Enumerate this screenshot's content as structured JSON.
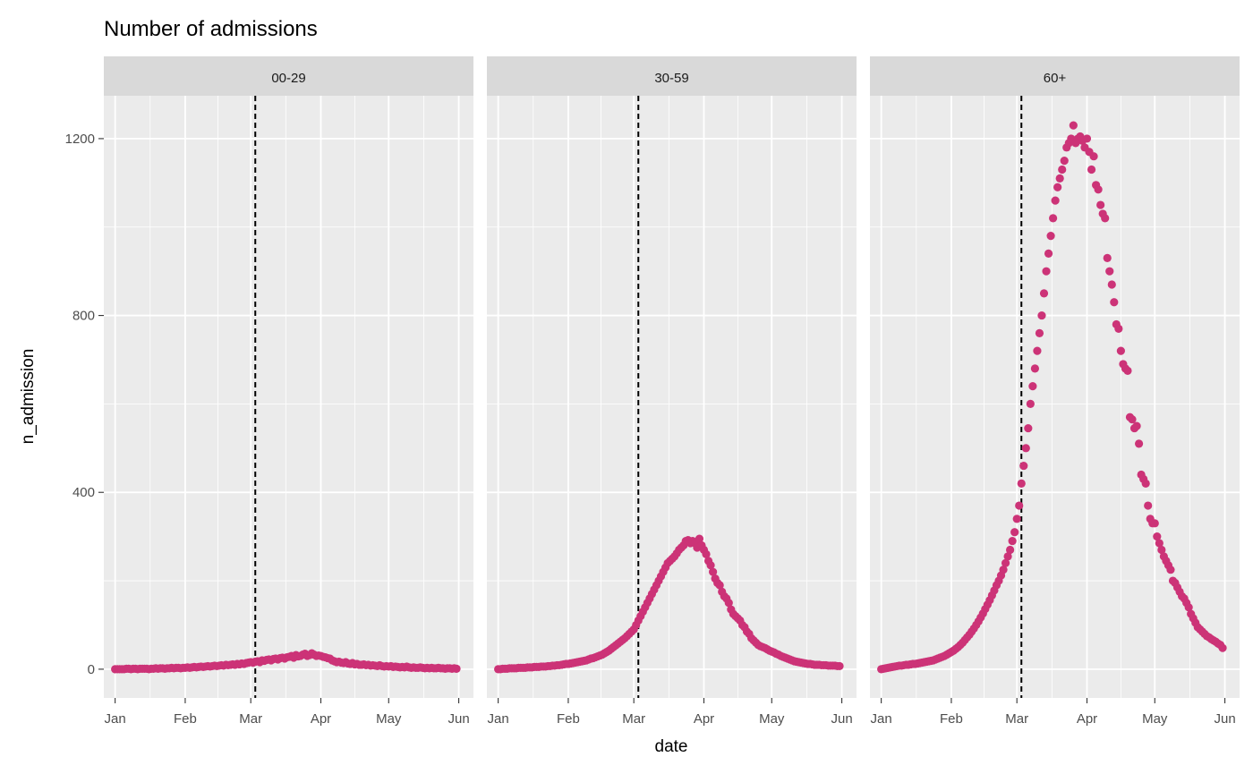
{
  "chart_data": {
    "type": "scatter",
    "title": "Number of admissions",
    "xlabel": "date",
    "ylabel": "n_admission",
    "facets": [
      "00-29",
      "30-59",
      "60+"
    ],
    "x_start": "2020-01-01",
    "x_step": "1 day",
    "x_ticks": [
      "Jan",
      "Feb",
      "Mar",
      "Apr",
      "May",
      "Jun"
    ],
    "y_ticks": [
      0,
      400,
      800,
      1200
    ],
    "ylim": [
      -65,
      1297
    ],
    "grid": true,
    "vline": {
      "date": "2020-03-03",
      "style": "dashed",
      "color": "#000000"
    },
    "point_color": "#CC3377",
    "series": [
      {
        "name": "00-29",
        "values": [
          0,
          0,
          0,
          0,
          0,
          1,
          1,
          0,
          1,
          1,
          0,
          1,
          1,
          1,
          1,
          0,
          1,
          1,
          2,
          1,
          2,
          2,
          1,
          2,
          2,
          3,
          2,
          3,
          3,
          2,
          3,
          3,
          4,
          3,
          4,
          5,
          4,
          5,
          6,
          5,
          6,
          7,
          6,
          7,
          8,
          7,
          8,
          9,
          8,
          10,
          9,
          10,
          11,
          10,
          12,
          11,
          13,
          12,
          14,
          15,
          16,
          15,
          17,
          18,
          16,
          20,
          19,
          21,
          22,
          20,
          23,
          24,
          22,
          25,
          26,
          24,
          27,
          28,
          30,
          26,
          32,
          29,
          30,
          33,
          35,
          30,
          32,
          36,
          33,
          30,
          31,
          30,
          28,
          27,
          25,
          24,
          20,
          18,
          16,
          17,
          15,
          14,
          16,
          13,
          12,
          14,
          11,
          12,
          10,
          10,
          11,
          9,
          10,
          8,
          9,
          8,
          7,
          9,
          7,
          6,
          7,
          6,
          7,
          5,
          6,
          5,
          4,
          5,
          4,
          6,
          4,
          3,
          4,
          3,
          3,
          4,
          3,
          2,
          3,
          2,
          3,
          2,
          2,
          3,
          2,
          2,
          1,
          2,
          2,
          1,
          2,
          1
        ]
      },
      {
        "name": "30-59",
        "values": [
          0,
          0,
          1,
          1,
          1,
          2,
          2,
          2,
          2,
          3,
          3,
          3,
          3,
          4,
          4,
          4,
          5,
          5,
          5,
          6,
          6,
          6,
          7,
          7,
          8,
          8,
          9,
          9,
          10,
          11,
          12,
          12,
          13,
          14,
          15,
          16,
          17,
          18,
          19,
          20,
          22,
          24,
          25,
          27,
          29,
          31,
          33,
          36,
          39,
          42,
          46,
          50,
          54,
          58,
          62,
          66,
          70,
          75,
          80,
          85,
          90,
          100,
          110,
          120,
          130,
          140,
          150,
          160,
          170,
          180,
          190,
          200,
          210,
          220,
          230,
          240,
          245,
          250,
          255,
          262,
          270,
          275,
          280,
          290,
          292,
          285,
          290,
          285,
          275,
          295,
          280,
          270,
          260,
          245,
          235,
          220,
          205,
          195,
          190,
          175,
          165,
          160,
          150,
          135,
          125,
          120,
          115,
          110,
          100,
          95,
          85,
          80,
          70,
          65,
          60,
          55,
          52,
          50,
          48,
          45,
          42,
          40,
          38,
          35,
          33,
          30,
          28,
          26,
          24,
          22,
          20,
          18,
          17,
          16,
          15,
          14,
          13,
          12,
          12,
          11,
          10,
          10,
          10,
          9,
          9,
          9,
          8,
          8,
          8,
          8,
          7,
          7
        ]
      },
      {
        "name": "60+",
        "values": [
          0,
          1,
          2,
          3,
          4,
          5,
          6,
          7,
          8,
          8,
          9,
          10,
          10,
          11,
          12,
          12,
          13,
          14,
          15,
          16,
          17,
          18,
          19,
          20,
          22,
          24,
          26,
          28,
          30,
          33,
          36,
          39,
          42,
          46,
          50,
          55,
          60,
          66,
          72,
          78,
          85,
          92,
          100,
          108,
          117,
          126,
          136,
          146,
          156,
          167,
          178,
          190,
          200,
          212,
          225,
          240,
          255,
          270,
          290,
          310,
          340,
          370,
          420,
          460,
          500,
          545,
          600,
          640,
          680,
          720,
          760,
          800,
          850,
          900,
          940,
          980,
          1020,
          1060,
          1090,
          1110,
          1130,
          1150,
          1180,
          1190,
          1200,
          1230,
          1190,
          1200,
          1205,
          1195,
          1180,
          1200,
          1170,
          1130,
          1160,
          1095,
          1085,
          1050,
          1030,
          1020,
          930,
          900,
          870,
          830,
          780,
          770,
          720,
          690,
          680,
          675,
          570,
          565,
          545,
          550,
          510,
          440,
          430,
          420,
          370,
          340,
          330,
          330,
          300,
          285,
          270,
          255,
          245,
          235,
          225,
          200,
          195,
          185,
          175,
          165,
          160,
          150,
          140,
          125,
          115,
          105,
          95,
          90,
          85,
          80,
          75,
          72,
          68,
          65,
          62,
          58,
          55,
          48
        ]
      }
    ]
  }
}
